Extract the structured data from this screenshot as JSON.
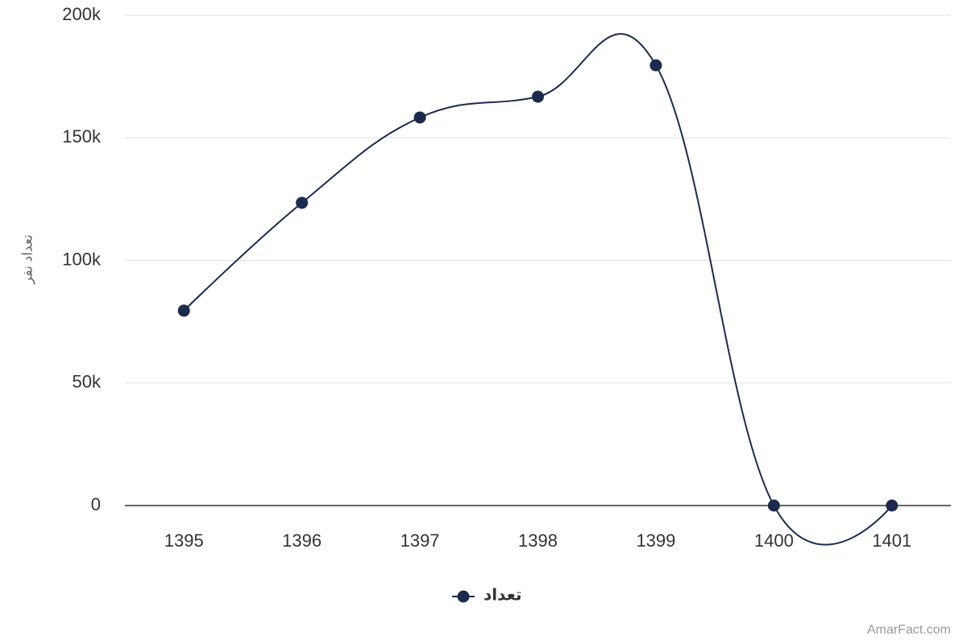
{
  "chart_data": {
    "type": "line",
    "y_axis_label": "تعداد نفر",
    "categories": [
      "1395",
      "1396",
      "1397",
      "1398",
      "1399",
      "1400",
      "1401"
    ],
    "series": [
      {
        "name": "تعداد",
        "color": "#1c2a4e",
        "values": [
          79500,
          123500,
          158300,
          166800,
          179600,
          0,
          0
        ]
      }
    ],
    "ylim": [
      0,
      200000
    ],
    "yticks": [
      0,
      {
        "value": 50000,
        "label": "50k"
      },
      {
        "value": 100000,
        "label": "100k"
      },
      {
        "value": 150000,
        "label": "150k"
      },
      {
        "value": 200000,
        "label": "200k"
      }
    ],
    "grid": true,
    "legend": "bottom",
    "credit": "AmarFact.com"
  }
}
